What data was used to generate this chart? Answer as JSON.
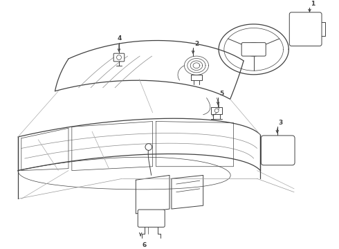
{
  "background_color": "#ffffff",
  "line_color": "#404040",
  "label_color": "#000000",
  "fig_width": 4.9,
  "fig_height": 3.6,
  "dpi": 100,
  "lw_main": 0.7,
  "lw_thin": 0.5,
  "lw_thick": 0.9,
  "label_fontsize": 6.5
}
